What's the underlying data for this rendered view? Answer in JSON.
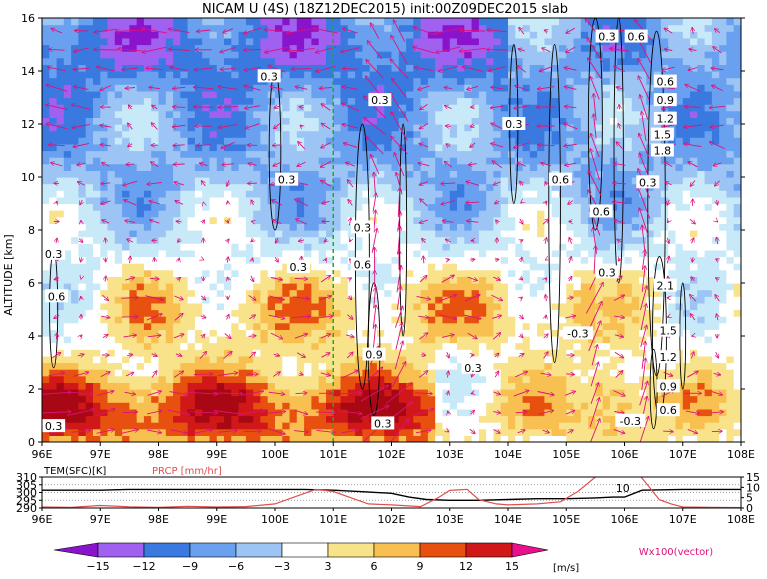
{
  "chart_data": [
    {
      "type": "heatmap",
      "title": "NICAM  U  (4S)  (18Z12DEC2015)  init:00Z09DEC2015  slab",
      "ylabel": "ALTITUDE  [km]",
      "x_ticks": [
        "96E",
        "97E",
        "98E",
        "99E",
        "100E",
        "101E",
        "102E",
        "103E",
        "104E",
        "105E",
        "106E",
        "107E",
        "108E"
      ],
      "y_ticks": [
        "0",
        "2",
        "4",
        "6",
        "8",
        "10",
        "12",
        "14",
        "16"
      ],
      "xlim": [
        96,
        108
      ],
      "ylim": [
        0,
        16
      ],
      "marker_line_lon": 101,
      "colors": {
        "marker_line": "#22aa22",
        "vector": "#e0107a",
        "contour": "#000000"
      },
      "contour_labels": [
        {
          "text": "0.3",
          "lon": 96.2,
          "alt": 0.6
        },
        {
          "text": "0.3",
          "lon": 96.2,
          "alt": 7.1
        },
        {
          "text": "0.6",
          "lon": 96.25,
          "alt": 5.5
        },
        {
          "text": "0.3",
          "lon": 99.9,
          "alt": 13.8
        },
        {
          "text": "0.3",
          "lon": 100.4,
          "alt": 6.6
        },
        {
          "text": "0.3",
          "lon": 100.2,
          "alt": 9.9
        },
        {
          "text": "0.3",
          "lon": 101.8,
          "alt": 12.9
        },
        {
          "text": "0.3",
          "lon": 101.5,
          "alt": 8.1
        },
        {
          "text": "0.6",
          "lon": 101.5,
          "alt": 6.7
        },
        {
          "text": "0.9",
          "lon": 101.7,
          "alt": 3.3
        },
        {
          "text": "0.3",
          "lon": 101.85,
          "alt": 0.7
        },
        {
          "text": "0.3",
          "lon": 103.4,
          "alt": 2.8
        },
        {
          "text": "0.3",
          "lon": 104.1,
          "alt": 12.0
        },
        {
          "text": "0.6",
          "lon": 104.9,
          "alt": 9.9
        },
        {
          "text": "0.6",
          "lon": 105.6,
          "alt": 8.7
        },
        {
          "text": "0.3",
          "lon": 105.7,
          "alt": 6.4
        },
        {
          "text": "-0.3",
          "lon": 105.2,
          "alt": 4.1
        },
        {
          "text": "0.3",
          "lon": 105.7,
          "alt": 15.3
        },
        {
          "text": "0.6",
          "lon": 106.2,
          "alt": 15.3
        },
        {
          "text": "0.3",
          "lon": 106.4,
          "alt": 9.8
        },
        {
          "text": "-0.3",
          "lon": 106.1,
          "alt": 0.8
        },
        {
          "text": "0.6",
          "lon": 106.7,
          "alt": 13.6
        },
        {
          "text": "0.9",
          "lon": 106.7,
          "alt": 12.9
        },
        {
          "text": "1.2",
          "lon": 106.7,
          "alt": 12.2
        },
        {
          "text": "1.5",
          "lon": 106.65,
          "alt": 11.6
        },
        {
          "text": "1.8",
          "lon": 106.65,
          "alt": 11.0
        },
        {
          "text": "2.1",
          "lon": 106.7,
          "alt": 5.9
        },
        {
          "text": "1.5",
          "lon": 106.75,
          "alt": 4.2
        },
        {
          "text": "1.2",
          "lon": 106.75,
          "alt": 3.2
        },
        {
          "text": "0.9",
          "lon": 106.75,
          "alt": 2.1
        },
        {
          "text": "0.6",
          "lon": 106.75,
          "alt": 1.2
        }
      ]
    },
    {
      "type": "line",
      "title": "",
      "series": [
        {
          "name": "TEM(SFC)[K]",
          "color": "#000000",
          "axis": "left",
          "x": [
            96,
            97,
            97.5,
            98,
            99,
            100,
            100.5,
            101,
            101.5,
            102,
            102.3,
            102.6,
            103,
            103.5,
            104,
            104.5,
            105,
            105.5,
            105.8,
            106,
            106.3,
            107,
            108
          ],
          "values": [
            301.5,
            301.5,
            302,
            302,
            302,
            302,
            302,
            301.5,
            300.5,
            299.5,
            297,
            295.5,
            295,
            295,
            295.5,
            296,
            296,
            296.5,
            297,
            297,
            301.5,
            302,
            302
          ]
        },
        {
          "name": "PRCP [mm/hr]",
          "color": "#e05050",
          "axis": "right",
          "x": [
            96,
            96.5,
            97,
            97.5,
            98,
            98.5,
            99,
            99.5,
            100,
            100.4,
            100.7,
            101,
            101.3,
            101.6,
            102,
            102.5,
            102.8,
            103,
            103.3,
            103.5,
            103.8,
            104,
            104.5,
            104.9,
            105.2,
            105.5,
            106,
            106.2,
            106.4,
            106.6,
            106.8,
            107,
            107.5,
            108
          ],
          "values": [
            0.5,
            0.3,
            1.2,
            0.6,
            0.3,
            0.8,
            0.5,
            0.7,
            2,
            6,
            9,
            8,
            5,
            2,
            1.5,
            0.7,
            5,
            8.5,
            9,
            4,
            2,
            1.5,
            2,
            3,
            8,
            15,
            18,
            18,
            11,
            4,
            2,
            0.5,
            0.3,
            0.2
          ]
        }
      ],
      "left_ticks": [
        "290",
        "295",
        "300",
        "305",
        "310"
      ],
      "left_lim": [
        290,
        310
      ],
      "right_ticks": [
        "0",
        "5",
        "10",
        "15"
      ],
      "right_lim": [
        0,
        15
      ],
      "contour_label": "10",
      "x_ticks": [
        "96E",
        "97E",
        "98E",
        "99E",
        "100E",
        "101E",
        "102E",
        "103E",
        "104E",
        "105E",
        "106E",
        "107E",
        "108E"
      ],
      "xlim": [
        96,
        108
      ]
    },
    {
      "type": "colorbar",
      "ticks": [
        "−15",
        "−12",
        "−9",
        "−6",
        "−3",
        "3",
        "6",
        "9",
        "12",
        "15"
      ],
      "unit": "[m/s]",
      "colors": [
        "#8a14cc",
        "#a060f0",
        "#3a7ae0",
        "#6aa0f0",
        "#9cc4f4",
        "#c8eaf8",
        "#ffffff",
        "#f8e28a",
        "#f8c050",
        "#f09018",
        "#e85010",
        "#d01818",
        "#a80814",
        "#e8108c"
      ],
      "vector_label": "Wx100(vector)"
    }
  ]
}
